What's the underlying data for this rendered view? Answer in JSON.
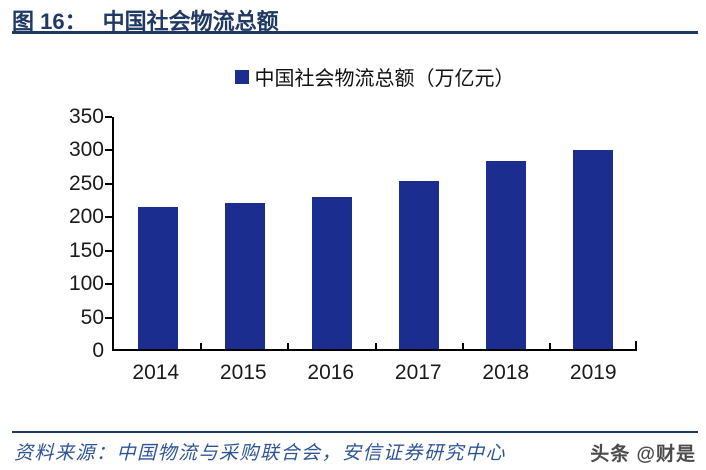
{
  "header": {
    "figure_label": "图 16：",
    "figure_title": "中国社会物流总额"
  },
  "chart_data": {
    "type": "bar",
    "title": "中国社会物流总额",
    "legend": "中国社会物流总额（万亿元）",
    "unit": "万亿元",
    "categories": [
      "2014",
      "2015",
      "2016",
      "2017",
      "2018",
      "2019"
    ],
    "values": [
      215,
      221,
      230,
      253,
      283,
      300
    ],
    "ylim": [
      0,
      350
    ],
    "yticks": [
      0,
      50,
      100,
      150,
      200,
      250,
      300,
      350
    ],
    "grid": false,
    "legend_position": "top-center",
    "bar_color": "#1B2D8F"
  },
  "footer": {
    "source_label": "资料来源：",
    "source_text": "中国物流与采购联合会，安信证券研究中心",
    "watermark": "头条 @财是"
  },
  "colors": {
    "accent": "#1F3864",
    "bar": "#1B2D8F",
    "source_text": "#2E5496",
    "axis_text": "#1A1A1A",
    "watermark_text": "#4B4B4B"
  }
}
